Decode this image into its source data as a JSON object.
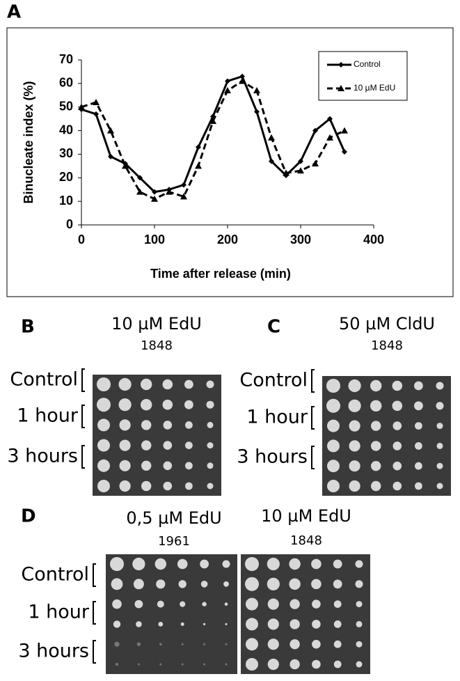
{
  "chart_data": {
    "type": "line",
    "panel_label": "A",
    "x_label": "Time after release (min)",
    "y_label": "Binucleate index (%)",
    "x": [
      0,
      20,
      40,
      60,
      80,
      100,
      120,
      140,
      160,
      180,
      200,
      220,
      240,
      260,
      280,
      300,
      320,
      340,
      360
    ],
    "series": [
      {
        "name": "Control",
        "color": "#000000",
        "line_style": "solid",
        "marker": "diamond",
        "values": [
          49,
          47,
          29,
          26,
          20,
          14,
          15,
          17,
          33,
          46,
          61,
          63,
          48,
          27,
          21,
          27,
          40,
          45,
          31
        ]
      },
      {
        "name": "10 µM EdU",
        "color": "#000000",
        "line_style": "dashed",
        "marker": "triangle",
        "values": [
          50,
          52,
          40,
          25,
          14,
          11,
          14,
          12,
          25,
          44,
          57,
          61,
          57,
          37,
          22,
          23,
          26,
          37,
          40
        ]
      }
    ],
    "xlim": [
      0,
      400
    ],
    "xticks": [
      0,
      100,
      200,
      300,
      400
    ],
    "ylim": [
      0,
      70
    ],
    "yticks": [
      0,
      10,
      20,
      30,
      40,
      50,
      60,
      70
    ],
    "grid": false,
    "legend": "upper right"
  },
  "panels": [
    {
      "label": "B",
      "rows": [
        "Control",
        "1 hour",
        "3 hours"
      ],
      "plates": [
        {
          "title": "10 µM EdU",
          "strain": "1848"
        }
      ]
    },
    {
      "label": "C",
      "rows": [
        "Control",
        "1 hour",
        "3 hours"
      ],
      "plates": [
        {
          "title": "50 µM CldU",
          "strain": "1848"
        }
      ]
    },
    {
      "label": "D",
      "rows": [
        "Control",
        "1 hour",
        "3 hours"
      ],
      "plates": [
        {
          "title": "0,5 µM EdU",
          "strain": "1961"
        },
        {
          "title": "10 µM EdU",
          "strain": "1848"
        }
      ]
    }
  ]
}
